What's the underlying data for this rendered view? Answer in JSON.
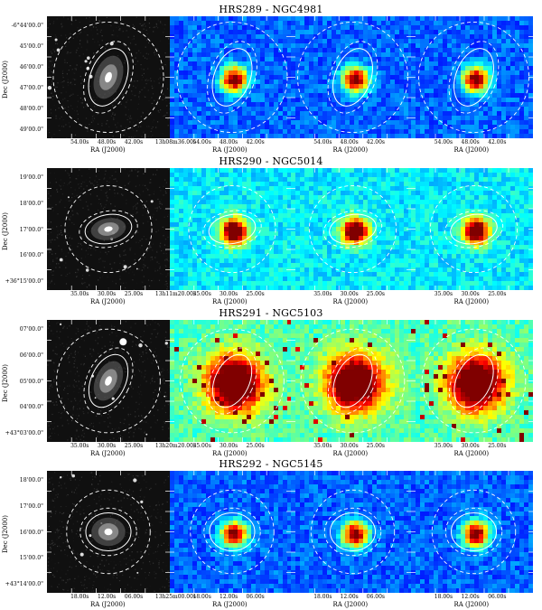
{
  "figure": {
    "rows": [
      {
        "title": "HRS289 - NGC4981",
        "yticks": [
          "-6°44'00.0\"",
          "45'00.0\"",
          "46'00.0\"",
          "47'00.0\"",
          "48'00.0\"",
          "49'00.0\""
        ],
        "ylabel": "Dec (J2000)",
        "xtick_first": [
          "54.00s",
          "48.00s",
          "42.00s",
          "13h08m36.00s"
        ],
        "xtick_other": [
          "54.00s",
          "48.00s",
          "42.00s"
        ],
        "xlabel": "RA (J2000)",
        "map_colors": "blue"
      },
      {
        "title": "HRS290 - NGC5014",
        "yticks": [
          "19'00.0\"",
          "18'00.0\"",
          "17'00.0\"",
          "16'00.0\"",
          "+36°15'00.0\""
        ],
        "ylabel": "Dec (J2000)",
        "xtick_first": [
          "35.00s",
          "30.00s",
          "25.00s",
          "13h11m20.00s"
        ],
        "xtick_other": [
          "35.00s",
          "30.00s",
          "25.00s"
        ],
        "xlabel": "RA (J2000)",
        "map_colors": "cyan"
      },
      {
        "title": "HRS291 - NGC5103",
        "yticks": [
          "07'00.0\"",
          "06'00.0\"",
          "05'00.0\"",
          "04'00.0\"",
          "+43°03'00.0\""
        ],
        "ylabel": "Dec (J2000)",
        "xtick_first": [
          "35.00s",
          "30.00s",
          "25.00s",
          "13h20m20.00s"
        ],
        "xtick_other": [
          "35.00s",
          "30.00s",
          "25.00s"
        ],
        "xlabel": "RA (J2000)",
        "map_colors": "green"
      },
      {
        "title": "HRS292 - NGC5145",
        "yticks": [
          "18'00.0\"",
          "17'00.0\"",
          "16'00.0\"",
          "15'00.0\"",
          "+43°14'00.0\""
        ],
        "ylabel": "Dec (J2000)",
        "xtick_first": [
          "18.00s",
          "12.00s",
          "06.00s",
          "13h25m00.00s"
        ],
        "xtick_other": [
          "18.00s",
          "12.00s",
          "06.00s"
        ],
        "xlabel": "RA (J2000)",
        "map_colors": "blue"
      }
    ]
  }
}
